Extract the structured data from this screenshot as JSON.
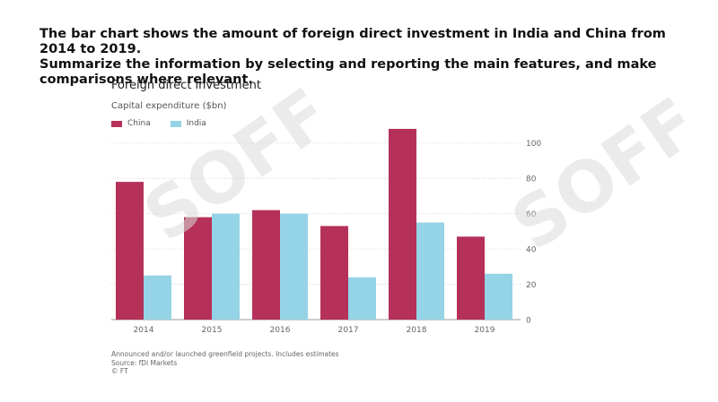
{
  "prompt": {
    "line1": "The bar chart shows the amount of foreign direct investment in India and China from 2014 to 2019.",
    "line2": "Summarize the information by selecting and reporting the main features, and make comparisons where relevant."
  },
  "watermark": {
    "text": "SOFF"
  },
  "chart_data": {
    "type": "bar",
    "title": "Foreign direct investment",
    "subtitle": "Capital expenditure ($bn)",
    "categories": [
      "2014",
      "2015",
      "2016",
      "2017",
      "2018",
      "2019"
    ],
    "series": [
      {
        "name": "China",
        "color": "#b5315a",
        "values": [
          78,
          58,
          62,
          53,
          108,
          47
        ]
      },
      {
        "name": "India",
        "color": "#95d3e6",
        "values": [
          25,
          60,
          60,
          24,
          55,
          26
        ]
      }
    ],
    "ylim": [
      0,
      110
    ],
    "yticks": [
      0,
      20,
      40,
      60,
      80,
      100
    ],
    "grid": true,
    "legend": "top-left",
    "notes": [
      "Announced and/or launched greenfield projects. Includes estimates",
      "Source: fDi Markets",
      "© FT"
    ]
  }
}
